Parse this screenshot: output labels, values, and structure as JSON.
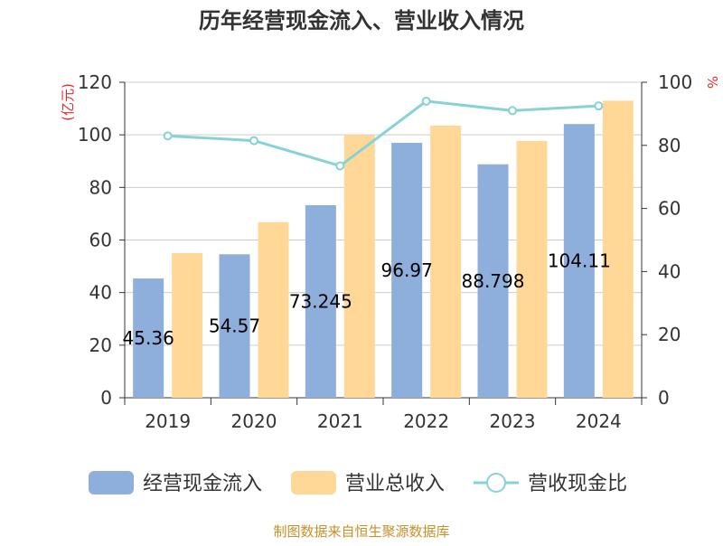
{
  "chart_data": {
    "type": "bar",
    "title": "历年经营现金流入、营业收入情况",
    "categories": [
      "2019",
      "2020",
      "2021",
      "2022",
      "2023",
      "2024"
    ],
    "series": [
      {
        "name": "经营现金流入",
        "kind": "bar",
        "axis": "left",
        "color": "#8eaedb",
        "values": [
          45.36,
          54.57,
          73.245,
          96.97,
          88.798,
          104.11
        ]
      },
      {
        "name": "营业总收入",
        "kind": "bar",
        "axis": "left",
        "color": "#ffd898",
        "values": [
          55,
          66.8,
          100,
          103.5,
          97.7,
          113
        ]
      },
      {
        "name": "营收现金比",
        "kind": "line",
        "axis": "right",
        "color": "#86d2d6",
        "values": [
          83,
          81.5,
          73.5,
          94,
          91,
          92.5
        ]
      }
    ],
    "data_labels": [
      "45.36",
      "54.57",
      "73.245",
      "96.97",
      "88.798",
      "104.11"
    ],
    "ylabel_left": "(亿元)",
    "ylabel_right": "%",
    "ylim_left": [
      0,
      120
    ],
    "ylim_right": [
      0,
      100
    ],
    "yticks_left": [
      "0",
      "20",
      "40",
      "60",
      "80",
      "100",
      "120"
    ],
    "yticks_right": [
      "0",
      "20",
      "40",
      "60",
      "80",
      "100"
    ],
    "grid": true,
    "legend_position": "bottom",
    "source": "制图数据来自恒生聚源数据库"
  }
}
